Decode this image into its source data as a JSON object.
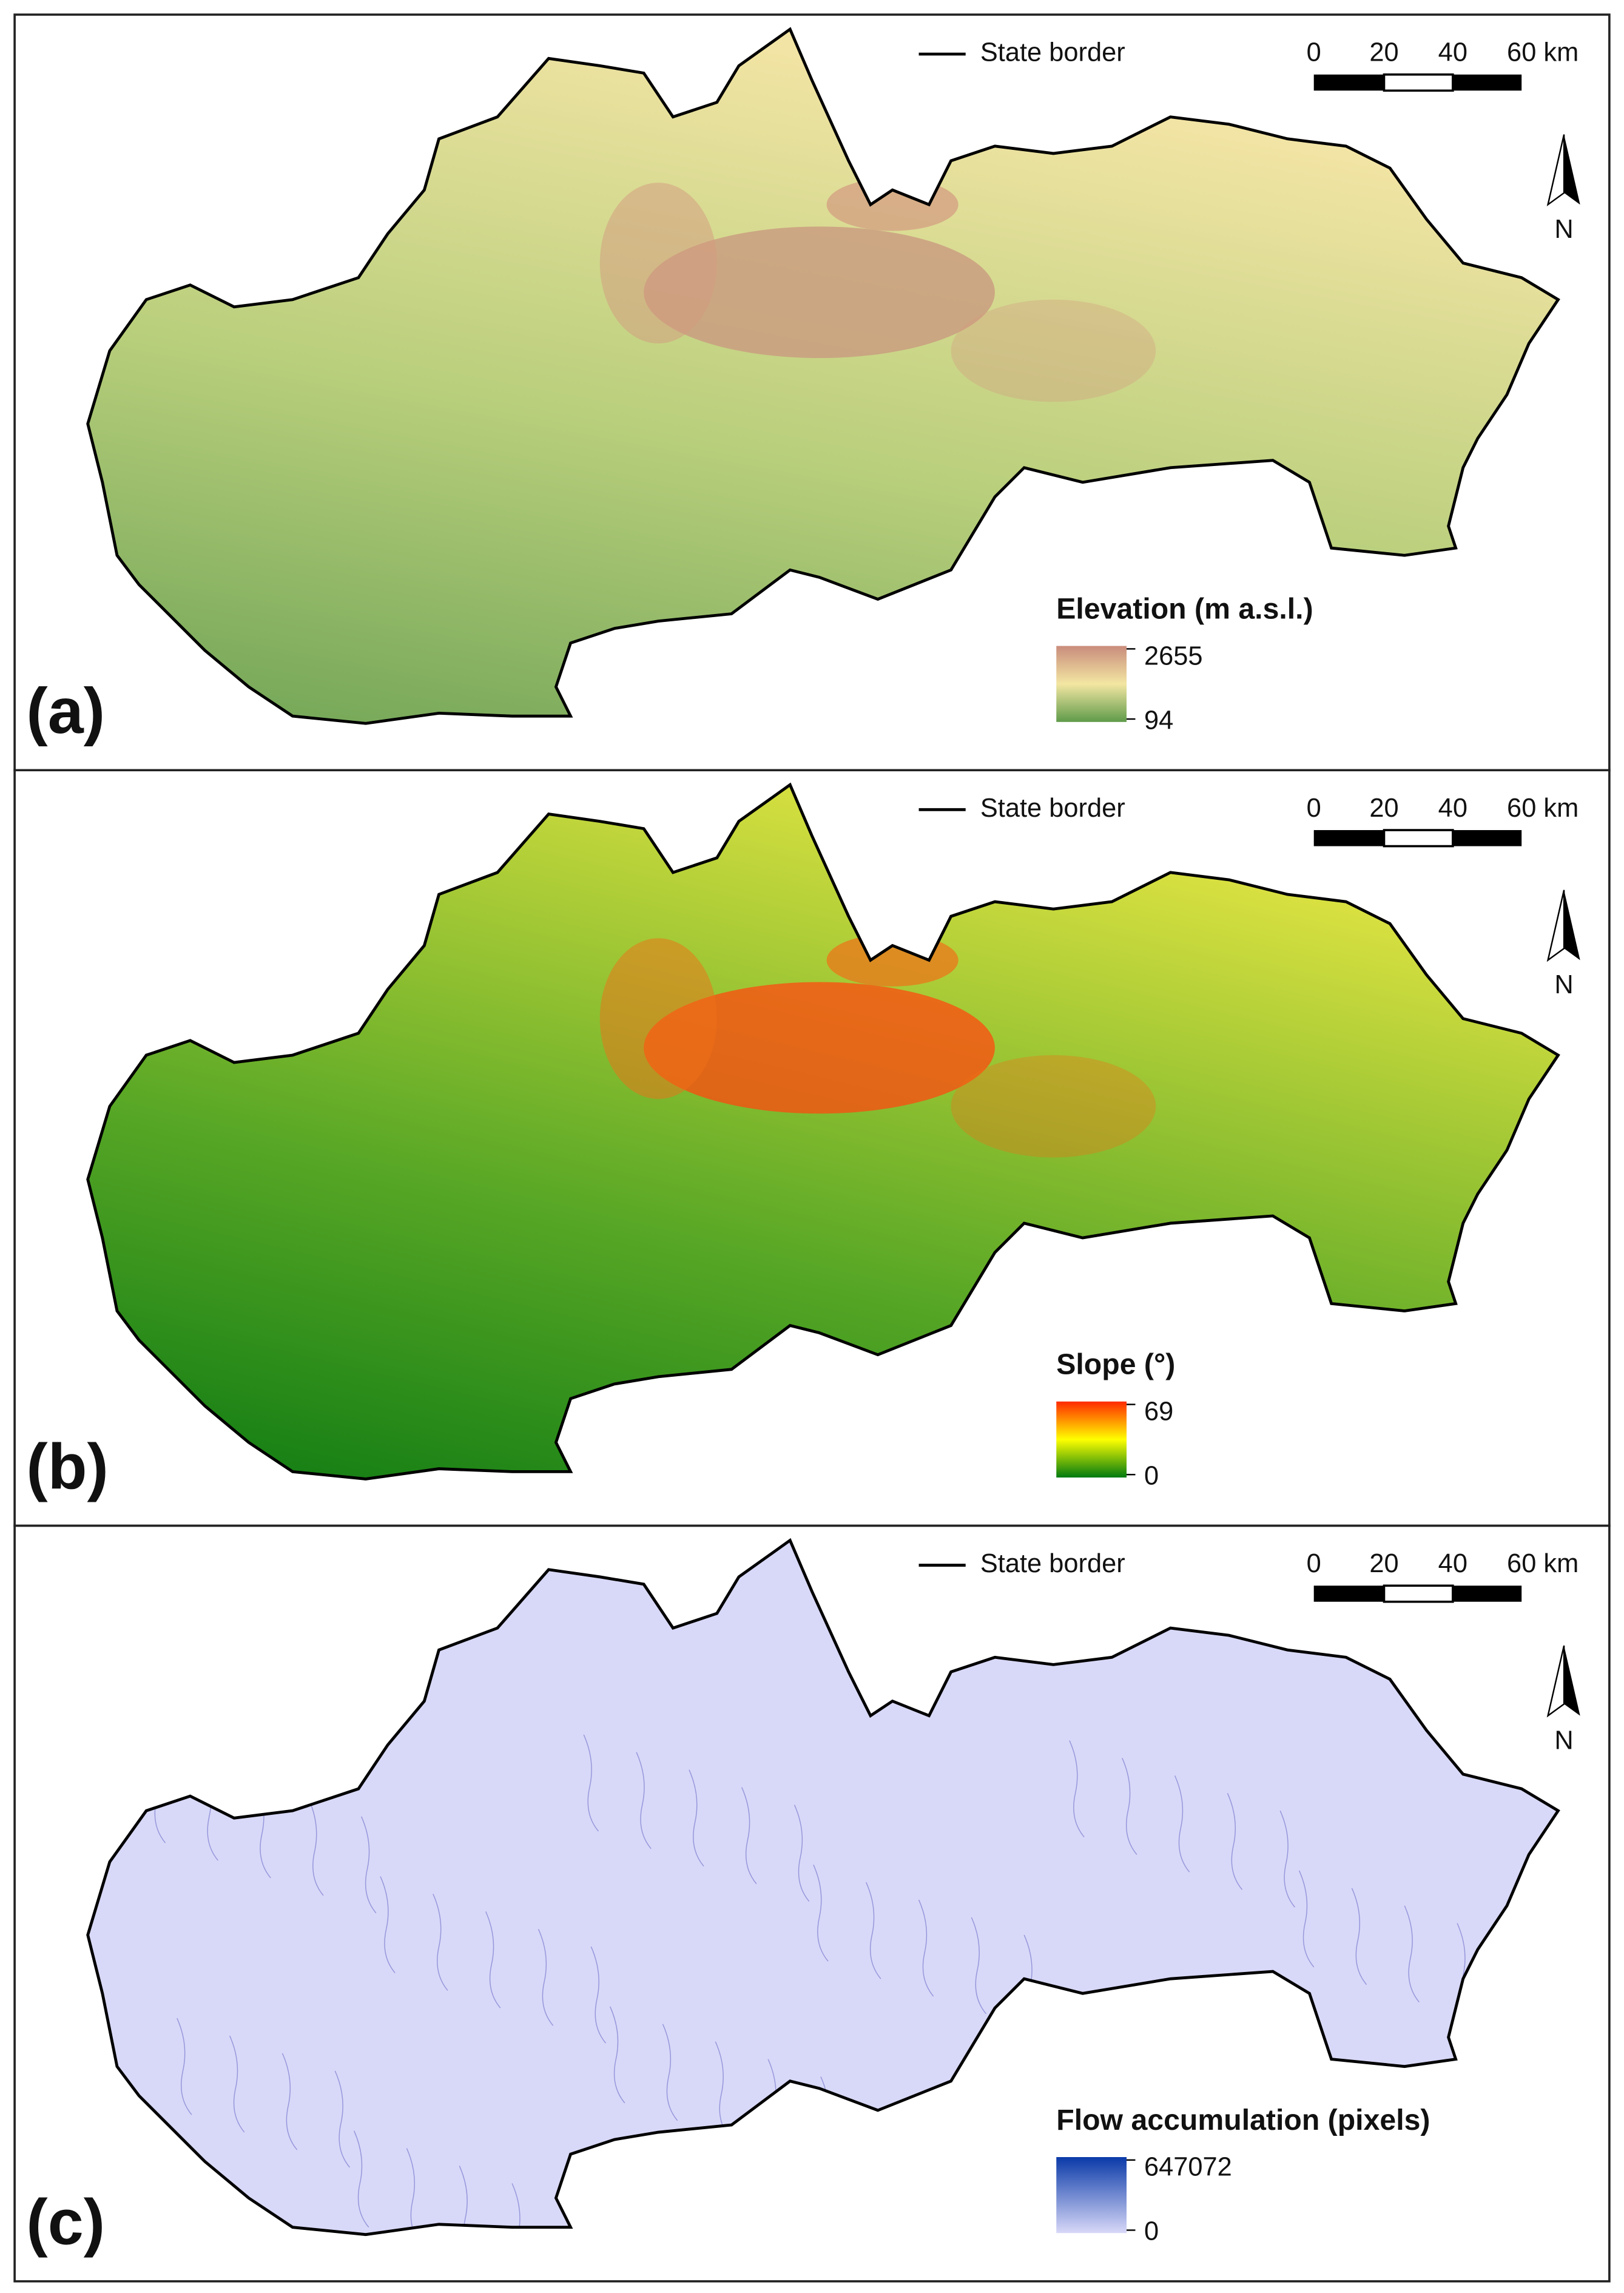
{
  "state_border": "State border",
  "scale_bar": {
    "labels": [
      "0",
      "20",
      "40",
      "60 km"
    ]
  },
  "north_label": "N",
  "panels": [
    {
      "label": "(a)",
      "legend": {
        "title": "Elevation (m a.s.l.)",
        "max": 2655,
        "min": 94,
        "colors": [
          "#c98c7c",
          "#f3e6a2",
          "#5f9b4a"
        ]
      }
    },
    {
      "label": "(b)",
      "legend": {
        "title": "Slope (°)",
        "max": 69,
        "min": 0,
        "colors": [
          "#ff2a00",
          "#ffff00",
          "#007a10"
        ]
      }
    },
    {
      "label": "(c)",
      "legend": {
        "title": "Flow accumulation (pixels)",
        "max": 647072,
        "min": 0,
        "colors": [
          "#0a3aa8",
          "#d8d8f8"
        ]
      }
    }
  ]
}
